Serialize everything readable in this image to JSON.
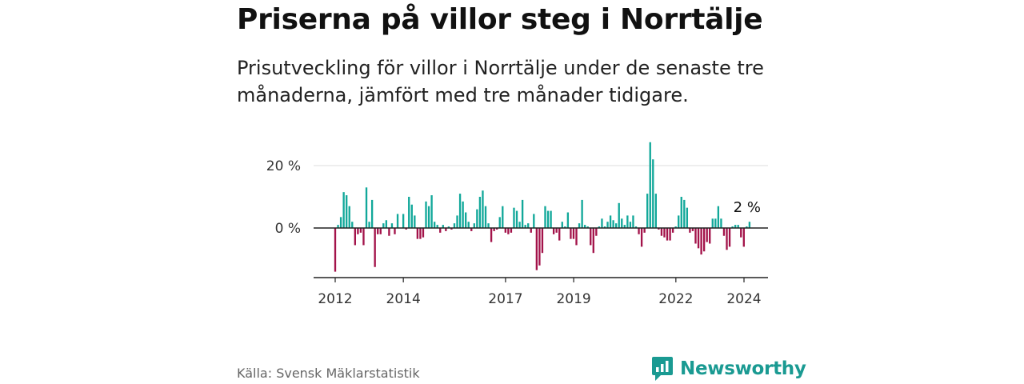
{
  "header": {
    "title": "Priserna på villor steg i Norrtälje",
    "subtitle": "Prisutveckling för villor i Norrtälje under de senaste tre månaderna, jämfört med tre månader tidigare."
  },
  "footer": {
    "source": "Källa: Svensk Mäklarstatistik",
    "brand": "Newsworthy",
    "brand_icon": "newsworthy-logo-icon"
  },
  "colors": {
    "positive": "#12a89a",
    "negative": "#a3134a",
    "brand": "#1a9a92"
  },
  "chart_data": {
    "type": "bar",
    "title": "Priserna på villor steg i Norrtälje",
    "ylabel": "",
    "xlabel": "",
    "ylim": [
      -16,
      28
    ],
    "xlim": [
      2011.1,
      2024.55
    ],
    "y_ticks": [
      {
        "value": 0,
        "label": "0 %"
      },
      {
        "value": 20,
        "label": "20 %"
      }
    ],
    "x_ticks": [
      {
        "value": 2012,
        "label": "2012"
      },
      {
        "value": 2014,
        "label": "2014"
      },
      {
        "value": 2017,
        "label": "2017"
      },
      {
        "value": 2019,
        "label": "2019"
      },
      {
        "value": 2022,
        "label": "2022"
      },
      {
        "value": 2024,
        "label": "2024"
      }
    ],
    "annotation": {
      "label": "2 %",
      "x": 2024.042,
      "value": 2
    },
    "series": [
      {
        "name": "Prisutveckling",
        "start": 2012.0,
        "step": 0.0833,
        "values": [
          -14,
          1,
          3.5,
          11.5,
          10.5,
          7,
          2,
          -5.5,
          -2,
          -1.5,
          -5.5,
          13,
          2,
          9,
          -12.5,
          -2,
          -2,
          1.5,
          2.5,
          -2.5,
          1.5,
          -2,
          4.5,
          0,
          4.5,
          -0.5,
          10,
          7.5,
          4,
          -3.5,
          -3.5,
          -3,
          8.5,
          7,
          10.5,
          2,
          1,
          -1.5,
          1,
          -1,
          0.5,
          -0.5,
          1.5,
          4,
          11,
          8.5,
          5,
          2,
          -1,
          1.5,
          6,
          10,
          12,
          7,
          1.5,
          -4.5,
          -1,
          -0.5,
          3.5,
          7,
          -1.5,
          -2,
          -1.5,
          6.5,
          5.5,
          2,
          9,
          1,
          1.5,
          -1.5,
          4.5,
          -13.5,
          -12,
          -8,
          7,
          5.5,
          5.5,
          -2,
          -1.5,
          -4,
          2,
          0.5,
          5,
          -3.5,
          -3.5,
          -5.5,
          1.5,
          9,
          1,
          0.5,
          -5.5,
          -8,
          -2.5,
          0.5,
          3,
          0.5,
          2,
          4,
          2.5,
          1.5,
          8,
          3,
          1,
          4,
          2,
          4,
          0.5,
          -2,
          -6,
          -1.5,
          11,
          27.5,
          22,
          11,
          -0.5,
          -2.5,
          -3,
          -4,
          -4,
          -1.5,
          0.5,
          4,
          10,
          9,
          6.5,
          -1.5,
          -1,
          -5,
          -6.5,
          -8.5,
          -7.5,
          -4.5,
          -5,
          3,
          3,
          7,
          3,
          -2.5,
          -7,
          -6,
          0.5,
          1,
          1,
          -3,
          -6,
          0.5,
          2
        ]
      }
    ]
  }
}
